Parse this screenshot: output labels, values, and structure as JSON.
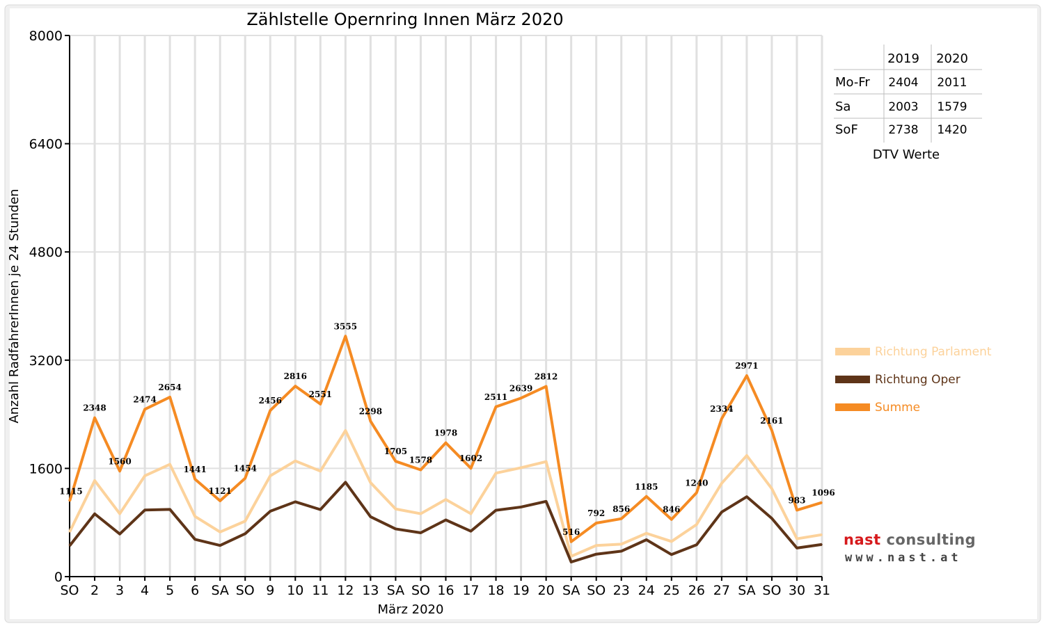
{
  "chart_data": {
    "type": "line",
    "title": "Zählstelle Opernring Innen März 2020",
    "xlabel": "März 2020",
    "ylabel": "Anzahl RadfahrerInnen je 24 Stunden",
    "ylim": [
      0,
      8000
    ],
    "yticks": [
      "0",
      "1600",
      "3200",
      "4800",
      "6400",
      "8000"
    ],
    "grid": true,
    "categories": [
      "SO",
      "2",
      "3",
      "4",
      "5",
      "6",
      "SA",
      "SO",
      "9",
      "10",
      "11",
      "12",
      "13",
      "SA",
      "SO",
      "16",
      "17",
      "18",
      "19",
      "20",
      "SA",
      "SO",
      "23",
      "24",
      "25",
      "26",
      "27",
      "SA",
      "SO",
      "30",
      "31"
    ],
    "highlight_categories": [
      "SO"
    ],
    "highlight_color": "#e8120c",
    "series": [
      {
        "name": "Richtung Parlament",
        "color": "#fcd29b",
        "labeled": false,
        "values": [
          660,
          1420,
          930,
          1490,
          1660,
          890,
          660,
          820,
          1490,
          1710,
          1560,
          2160,
          1390,
          1000,
          930,
          1140,
          930,
          1530,
          1610,
          1700,
          300,
          460,
          480,
          640,
          520,
          770,
          1380,
          1790,
          1300,
          560,
          620
        ]
      },
      {
        "name": "Richtung Oper",
        "color": "#5e3418",
        "labeled": false,
        "values": [
          455,
          928,
          630,
          984,
          994,
          551,
          461,
          634,
          966,
          1106,
          991,
          1395,
          885,
          705,
          648,
          838,
          672,
          981,
          1029,
          1112,
          216,
          332,
          376,
          545,
          326,
          470,
          954,
          1181,
          861,
          423,
          476
        ]
      },
      {
        "name": "Summe",
        "color": "#f58b23",
        "labeled": true,
        "values": [
          1115,
          2348,
          1560,
          2474,
          2654,
          1441,
          1121,
          1454,
          2456,
          2816,
          2551,
          3555,
          2298,
          1705,
          1578,
          1978,
          1602,
          2511,
          2639,
          2812,
          516,
          792,
          856,
          1185,
          846,
          1240,
          2334,
          2971,
          2161,
          983,
          1096
        ]
      }
    ],
    "legend_placement": "right",
    "dtv_table": {
      "caption": "DTV Werte",
      "columns": [
        "2019",
        "2020"
      ],
      "rows": [
        {
          "label": "Mo-Fr",
          "values": [
            "2404",
            "2011"
          ]
        },
        {
          "label": "Sa",
          "values": [
            "2003",
            "1579"
          ]
        },
        {
          "label": "SoF",
          "values": [
            "2738",
            "1420"
          ]
        }
      ]
    }
  },
  "logo": {
    "name_part1": "nast",
    "name_part2": " consulting",
    "url": "www.nast.at"
  }
}
